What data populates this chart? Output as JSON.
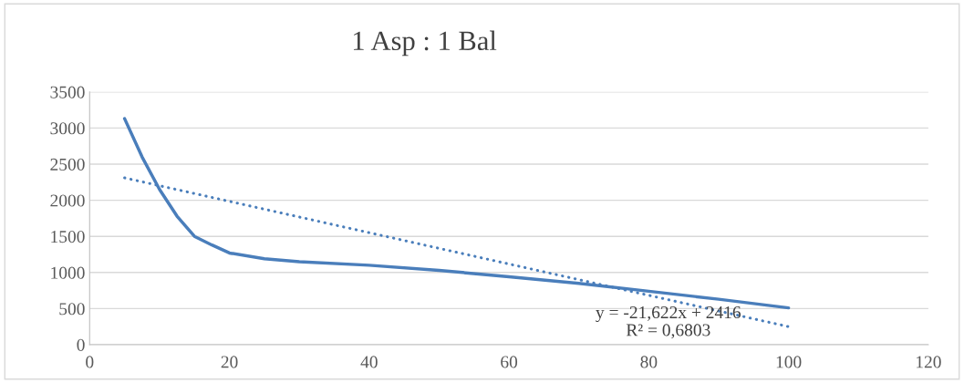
{
  "chart_data": {
    "type": "line",
    "title": "1 Asp : 1 Bal",
    "series": [
      {
        "color": "#4a7ebb",
        "line_style": "solid",
        "x": [
          5,
          7.5,
          10,
          12.5,
          15,
          17.5,
          20,
          25,
          30,
          40,
          50,
          60,
          70,
          80,
          90,
          100
        ],
        "values": [
          3130,
          2600,
          2150,
          1780,
          1500,
          1380,
          1270,
          1190,
          1150,
          1100,
          1030,
          940,
          850,
          740,
          630,
          510
        ]
      },
      {
        "color": "#4a7ebb",
        "line_style": "dotted",
        "x": [
          5,
          100
        ],
        "values": [
          2310,
          250
        ]
      }
    ],
    "xlim": [
      0,
      120
    ],
    "xticks": [
      0,
      20,
      40,
      60,
      80,
      100,
      120
    ],
    "ylim": [
      0,
      3500
    ],
    "yticks": [
      0,
      500,
      1000,
      1500,
      2000,
      2500,
      3000,
      3500
    ],
    "grid": "y",
    "marker": "none",
    "annotations": [
      "y = -21,622x + 2416",
      "R² = 0,6803"
    ]
  }
}
